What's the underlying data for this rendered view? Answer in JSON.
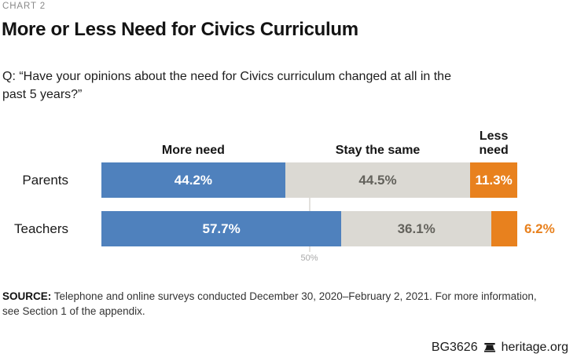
{
  "chart_label": "CHART 2",
  "title": "More or Less Need for Civics Curriculum",
  "question": {
    "line1": "Q: “Have your opinions about the need for Civics curriculum changed at all in the",
    "line2": "past 5 years?”"
  },
  "chart_data": {
    "type": "bar",
    "orientation": "horizontal-stacked",
    "categories": [
      "Parents",
      "Teachers"
    ],
    "series": [
      {
        "name": "More need",
        "color": "#4f81bd",
        "label_color": "#ffffff",
        "values": [
          44.2,
          57.7
        ]
      },
      {
        "name": "Stay the same",
        "color": "#dbd9d3",
        "label_color": "#63625c",
        "values": [
          44.5,
          36.1
        ]
      },
      {
        "name": "Less need",
        "color": "#e8811e",
        "label_color": "#ffffff",
        "values": [
          11.3,
          6.2
        ]
      }
    ],
    "value_labels": [
      [
        "44.2%",
        "44.5%",
        "11.3%"
      ],
      [
        "57.7%",
        "36.1%",
        "6.2%"
      ]
    ],
    "axis": {
      "tick_label": "50%",
      "tick_value": 50,
      "xlim": [
        0,
        100
      ]
    },
    "legend_position": "top",
    "grid": "single 50% gridline"
  },
  "source": {
    "label": "SOURCE:",
    "line1": " Telephone and online surveys conducted December 30, 2020–February 2, 2021. For more information,",
    "line2": "see Section 1 of the appendix."
  },
  "footer": {
    "report_id": "BG3626",
    "site": "heritage.org"
  },
  "colors": {
    "more_need_blue": "#4f81bd",
    "stay_same_gray": "#dbd9d3",
    "less_need_orange": "#e8811e",
    "kicker_gray": "#8a8a8a",
    "tick_gray": "#a9a9a9"
  }
}
